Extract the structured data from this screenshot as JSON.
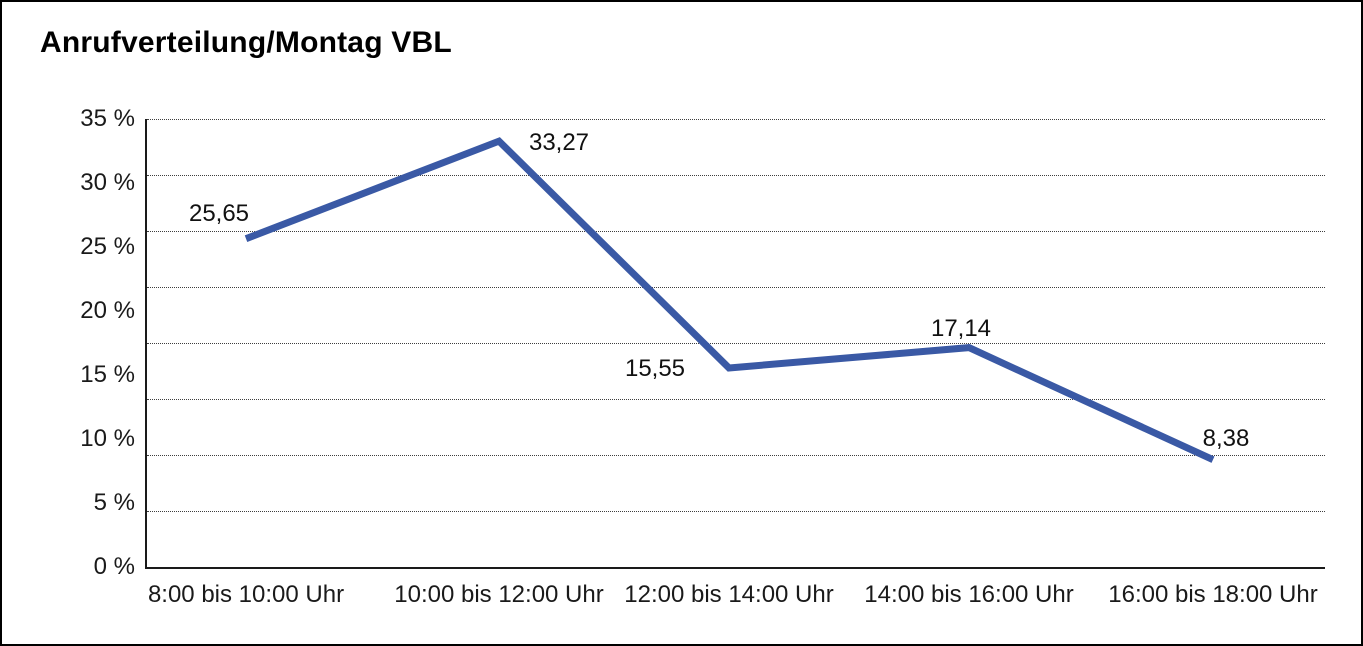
{
  "chart_data": {
    "type": "line",
    "title": "Anrufverteilung/Montag VBL",
    "categories": [
      "8:00 bis 10:00 Uhr",
      "10:00 bis 12:00 Uhr",
      "12:00 bis 14:00 Uhr",
      "14:00 bis 16:00 Uhr",
      "16:00 bis 18:00 Uhr"
    ],
    "values": [
      25.65,
      33.27,
      15.55,
      17.14,
      8.38
    ],
    "point_labels": [
      "25,65",
      "33,27",
      "15,55",
      "17,14",
      "8,38"
    ],
    "xlabel": "",
    "ylabel": "",
    "ylim": [
      0,
      35
    ],
    "y_ticks": [
      {
        "value": 35,
        "label": "35 %"
      },
      {
        "value": 30,
        "label": "30 %"
      },
      {
        "value": 25,
        "label": "25 %"
      },
      {
        "value": 20,
        "label": "20 %"
      },
      {
        "value": 15,
        "label": "15 %"
      },
      {
        "value": 10,
        "label": "10 %"
      },
      {
        "value": 5,
        "label": "5 %"
      },
      {
        "value": 0,
        "label": "0 %"
      }
    ],
    "grid": "horizontal-dotted-8-divisions",
    "legend": "none",
    "markers": "none",
    "line_color": "#3A59A5",
    "axis_color": "#1a1a1a",
    "label_positions": [
      "above-left",
      "right",
      "left",
      "above",
      "above-right"
    ]
  }
}
